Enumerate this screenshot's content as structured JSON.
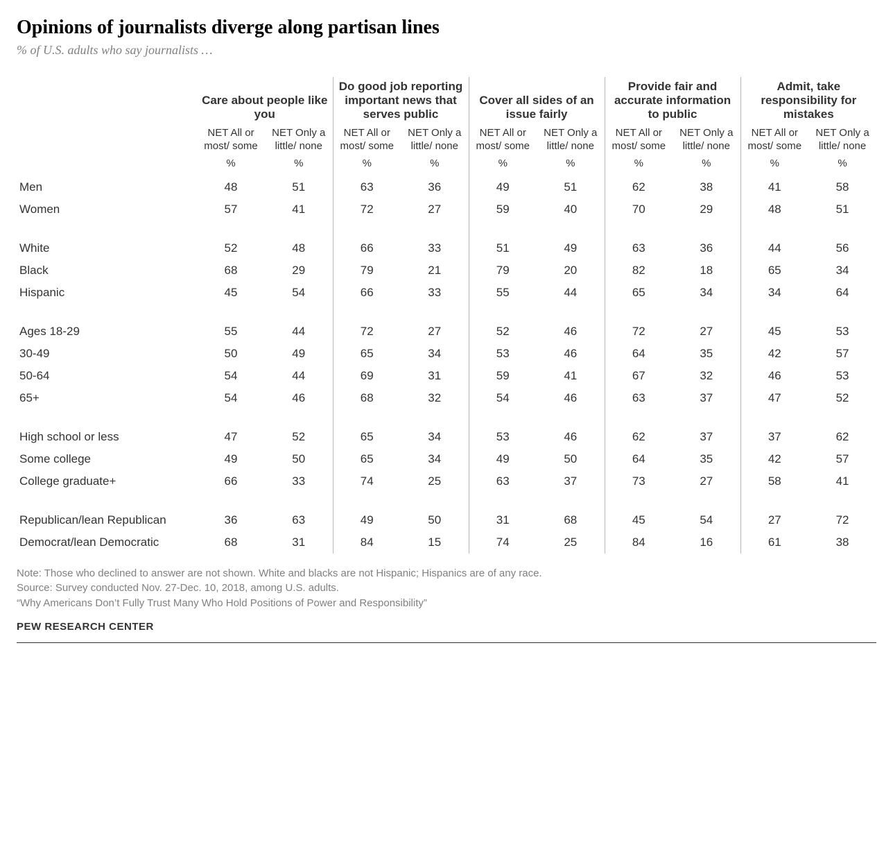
{
  "title": "Opinions of journalists diverge along partisan lines",
  "subtitle": "% of U.S. adults who say journalists …",
  "colors": {
    "background": "#ffffff",
    "text": "#333333",
    "muted": "#808080",
    "rule": "#b8b8b8",
    "bottom_rule": "#333333"
  },
  "fonts": {
    "title_family": "Georgia",
    "title_size_pt": 21,
    "subtitle_family": "Georgia",
    "subtitle_size_pt": 14,
    "table_family": "Arial",
    "header_size_pt": 13,
    "body_size_pt": 13,
    "notes_size_pt": 11
  },
  "table": {
    "type": "table",
    "groups": [
      {
        "label": "Care about people like you"
      },
      {
        "label": "Do good job reporting important news that serves public"
      },
      {
        "label": "Cover all sides of an issue fairly"
      },
      {
        "label": "Provide fair and accurate information to public"
      },
      {
        "label": "Admit, take responsibility for mistakes"
      }
    ],
    "sub_labels": {
      "most": "NET All or most/\nsome",
      "little": "NET Only a little/\nnone",
      "little_wrap": "NET\nOnly a\nlittle/\nnone"
    },
    "pct_symbol": "%",
    "blocks": [
      {
        "rows": [
          {
            "label": "Men",
            "v": [
              48,
              51,
              63,
              36,
              49,
              51,
              62,
              38,
              41,
              58
            ]
          },
          {
            "label": "Women",
            "v": [
              57,
              41,
              72,
              27,
              59,
              40,
              70,
              29,
              48,
              51
            ]
          }
        ]
      },
      {
        "rows": [
          {
            "label": "White",
            "v": [
              52,
              48,
              66,
              33,
              51,
              49,
              63,
              36,
              44,
              56
            ]
          },
          {
            "label": "Black",
            "v": [
              68,
              29,
              79,
              21,
              79,
              20,
              82,
              18,
              65,
              34
            ]
          },
          {
            "label": "Hispanic",
            "v": [
              45,
              54,
              66,
              33,
              55,
              44,
              65,
              34,
              34,
              64
            ]
          }
        ]
      },
      {
        "rows": [
          {
            "label": "Ages 18-29",
            "v": [
              55,
              44,
              72,
              27,
              52,
              46,
              72,
              27,
              45,
              53
            ]
          },
          {
            "label": "30-49",
            "v": [
              50,
              49,
              65,
              34,
              53,
              46,
              64,
              35,
              42,
              57
            ]
          },
          {
            "label": "50-64",
            "v": [
              54,
              44,
              69,
              31,
              59,
              41,
              67,
              32,
              46,
              53
            ]
          },
          {
            "label": "65+",
            "v": [
              54,
              46,
              68,
              32,
              54,
              46,
              63,
              37,
              47,
              52
            ]
          }
        ]
      },
      {
        "rows": [
          {
            "label": "High school or less",
            "v": [
              47,
              52,
              65,
              34,
              53,
              46,
              62,
              37,
              37,
              62
            ]
          },
          {
            "label": "Some college",
            "v": [
              49,
              50,
              65,
              34,
              49,
              50,
              64,
              35,
              42,
              57
            ]
          },
          {
            "label": "College graduate+",
            "v": [
              66,
              33,
              74,
              25,
              63,
              37,
              73,
              27,
              58,
              41
            ]
          }
        ]
      },
      {
        "rows": [
          {
            "label": "Republican/lean Republican",
            "v": [
              36,
              63,
              49,
              50,
              31,
              68,
              45,
              54,
              27,
              72
            ]
          },
          {
            "label": "Democrat/lean Democratic",
            "v": [
              68,
              31,
              84,
              15,
              74,
              25,
              84,
              16,
              61,
              38
            ]
          }
        ]
      }
    ]
  },
  "notes": {
    "line1": "Note: Those who declined to answer are not shown. White and blacks are not Hispanic; Hispanics are of any race.",
    "line2": "Source: Survey conducted Nov. 27-Dec. 10, 2018, among U.S. adults.",
    "line3": "“Why Americans Don’t Fully Trust Many Who Hold Positions of Power and Responsibility”"
  },
  "brand": "PEW RESEARCH CENTER"
}
